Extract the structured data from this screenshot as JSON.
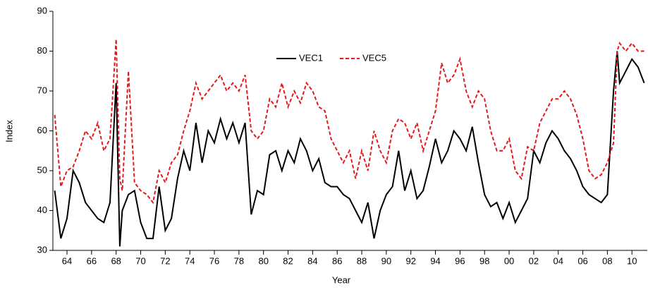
{
  "chart_data": {
    "type": "line",
    "xlabel": "Year",
    "ylabel": "Index",
    "x": [
      1963.0,
      1963.5,
      1964.0,
      1964.5,
      1965.0,
      1965.5,
      1966.0,
      1966.5,
      1967.0,
      1967.5,
      1968.0,
      1968.3,
      1968.5,
      1969.0,
      1969.5,
      1970.0,
      1970.5,
      1971.0,
      1971.5,
      1972.0,
      1972.5,
      1973.0,
      1973.5,
      1974.0,
      1974.5,
      1975.0,
      1975.5,
      1976.0,
      1976.5,
      1977.0,
      1977.5,
      1978.0,
      1978.5,
      1979.0,
      1979.5,
      1980.0,
      1980.5,
      1981.0,
      1981.5,
      1982.0,
      1982.5,
      1983.0,
      1983.5,
      1984.0,
      1984.5,
      1985.0,
      1985.5,
      1986.0,
      1986.5,
      1987.0,
      1987.5,
      1988.0,
      1988.5,
      1989.0,
      1989.5,
      1990.0,
      1990.5,
      1991.0,
      1991.5,
      1992.0,
      1992.5,
      1993.0,
      1993.5,
      1994.0,
      1994.5,
      1995.0,
      1995.5,
      1996.0,
      1996.5,
      1997.0,
      1997.5,
      1998.0,
      1998.5,
      1999.0,
      1999.5,
      2000.0,
      2000.5,
      2001.0,
      2001.5,
      2002.0,
      2002.5,
      2003.0,
      2003.5,
      2004.0,
      2004.5,
      2005.0,
      2005.5,
      2006.0,
      2006.5,
      2007.0,
      2007.5,
      2008.0,
      2008.5,
      2008.8,
      2009.0,
      2009.5,
      2010.0,
      2010.5,
      2011.0
    ],
    "series": [
      {
        "name": "VEC1",
        "color": "#000000",
        "style": "solid",
        "values": [
          45,
          33,
          38,
          50,
          47,
          42,
          40,
          38,
          37,
          42,
          72,
          31,
          40,
          44,
          45,
          37,
          33,
          33,
          46,
          35,
          38,
          48,
          55,
          50,
          62,
          52,
          60,
          57,
          63,
          58,
          62,
          57,
          62,
          39,
          45,
          44,
          54,
          55,
          50,
          55,
          52,
          58,
          55,
          50,
          53,
          47,
          46,
          46,
          44,
          43,
          40,
          37,
          42,
          33,
          40,
          44,
          46,
          55,
          45,
          50,
          43,
          45,
          51,
          58,
          52,
          55,
          60,
          58,
          55,
          61,
          52,
          44,
          41,
          42,
          38,
          42,
          37,
          40,
          43,
          55,
          52,
          57,
          60,
          58,
          55,
          53,
          50,
          46,
          44,
          43,
          42,
          44,
          70,
          80,
          72,
          75,
          78,
          76,
          72
        ]
      },
      {
        "name": "VEC5",
        "color": "#e31a1c",
        "style": "dashed",
        "values": [
          64,
          46,
          50,
          51,
          55,
          60,
          58,
          62,
          55,
          58,
          83,
          48,
          45,
          75,
          47,
          45,
          44,
          42,
          50,
          47,
          52,
          54,
          60,
          65,
          72,
          68,
          70,
          72,
          74,
          70,
          72,
          70,
          74,
          60,
          58,
          60,
          68,
          66,
          72,
          66,
          70,
          67,
          72,
          70,
          66,
          65,
          58,
          55,
          52,
          55,
          48,
          55,
          50,
          60,
          55,
          52,
          60,
          63,
          62,
          58,
          62,
          55,
          60,
          65,
          77,
          72,
          74,
          78,
          70,
          66,
          70,
          68,
          60,
          55,
          55,
          58,
          50,
          48,
          56,
          55,
          62,
          65,
          68,
          68,
          70,
          68,
          64,
          58,
          50,
          48,
          49,
          52,
          57,
          80,
          82,
          80,
          82,
          80,
          80
        ]
      }
    ],
    "xlim": [
      1962.85,
      2011.25
    ],
    "xticks": [
      {
        "value": 1964,
        "label": "64"
      },
      {
        "value": 1966,
        "label": "66"
      },
      {
        "value": 1968,
        "label": "68"
      },
      {
        "value": 1970,
        "label": "70"
      },
      {
        "value": 1972,
        "label": "72"
      },
      {
        "value": 1974,
        "label": "74"
      },
      {
        "value": 1976,
        "label": "76"
      },
      {
        "value": 1978,
        "label": "78"
      },
      {
        "value": 1980,
        "label": "80"
      },
      {
        "value": 1982,
        "label": "82"
      },
      {
        "value": 1984,
        "label": "84"
      },
      {
        "value": 1986,
        "label": "86"
      },
      {
        "value": 1988,
        "label": "88"
      },
      {
        "value": 1990,
        "label": "90"
      },
      {
        "value": 1992,
        "label": "92"
      },
      {
        "value": 1994,
        "label": "94"
      },
      {
        "value": 1996,
        "label": "96"
      },
      {
        "value": 1998,
        "label": "98"
      },
      {
        "value": 2000,
        "label": "00"
      },
      {
        "value": 2002,
        "label": "02"
      },
      {
        "value": 2004,
        "label": "04"
      },
      {
        "value": 2006,
        "label": "06"
      },
      {
        "value": 2008,
        "label": "08"
      },
      {
        "value": 2010,
        "label": "10"
      }
    ],
    "ylim": [
      30,
      90
    ],
    "yticks": [
      30,
      40,
      50,
      60,
      70,
      80,
      90
    ],
    "grid": false,
    "legend": "upper center"
  }
}
